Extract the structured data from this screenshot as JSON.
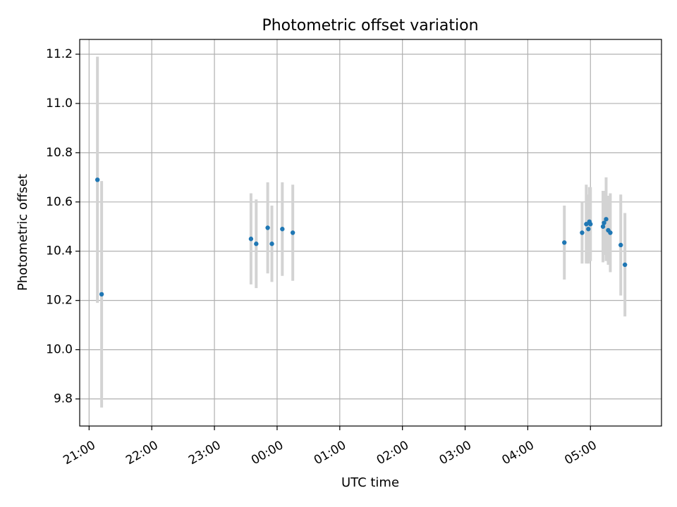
{
  "chart_data": {
    "type": "scatter",
    "title": "Photometric offset variation",
    "xlabel": "UTC time",
    "ylabel": "Photometric offset",
    "x_unit": "UTC",
    "xlim": [
      "20:51",
      "06:08"
    ],
    "ylim": [
      9.69,
      11.26
    ],
    "x_ticks": [
      "21:00",
      "22:00",
      "23:00",
      "00:00",
      "01:00",
      "02:00",
      "03:00",
      "04:00",
      "05:00"
    ],
    "y_ticks": [
      "9.8",
      "10.0",
      "10.2",
      "10.4",
      "10.6",
      "10.8",
      "11.0",
      "11.2"
    ],
    "grid": true,
    "legend": false,
    "colors": {
      "points": "#1f77b4",
      "errorbars": "#d3d3d3",
      "grid": "#b0b0b0"
    },
    "points": [
      {
        "x": "21:08",
        "y": 10.69,
        "err": 0.5
      },
      {
        "x": "21:12",
        "y": 10.225,
        "err": 0.46
      },
      {
        "x": "23:35",
        "y": 10.45,
        "err": 0.185
      },
      {
        "x": "23:40",
        "y": 10.43,
        "err": 0.18
      },
      {
        "x": "23:51",
        "y": 10.495,
        "err": 0.185
      },
      {
        "x": "23:55",
        "y": 10.43,
        "err": 0.155
      },
      {
        "x": "00:05",
        "y": 10.49,
        "err": 0.19
      },
      {
        "x": "00:15",
        "y": 10.475,
        "err": 0.195
      },
      {
        "x": "04:35",
        "y": 10.435,
        "err": 0.15
      },
      {
        "x": "04:52",
        "y": 10.475,
        "err": 0.125
      },
      {
        "x": "04:56",
        "y": 10.51,
        "err": 0.16
      },
      {
        "x": "04:58",
        "y": 10.49,
        "err": 0.14
      },
      {
        "x": "04:59",
        "y": 10.52,
        "err": 0.14
      },
      {
        "x": "05:00",
        "y": 10.51,
        "err": 0.15
      },
      {
        "x": "05:12",
        "y": 10.5,
        "err": 0.145
      },
      {
        "x": "05:13",
        "y": 10.515,
        "err": 0.13
      },
      {
        "x": "05:15",
        "y": 10.53,
        "err": 0.17
      },
      {
        "x": "05:17",
        "y": 10.485,
        "err": 0.14
      },
      {
        "x": "05:19",
        "y": 10.475,
        "err": 0.16
      },
      {
        "x": "05:29",
        "y": 10.425,
        "err": 0.205
      },
      {
        "x": "05:33",
        "y": 10.345,
        "err": 0.21
      }
    ]
  }
}
